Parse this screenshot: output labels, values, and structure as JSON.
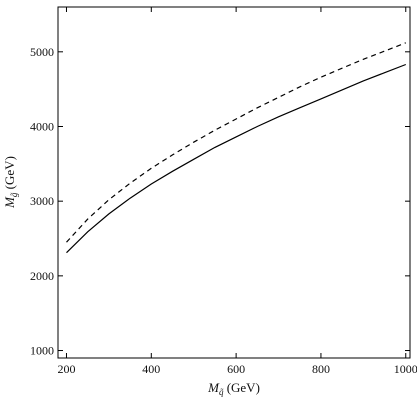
{
  "chart_data": {
    "type": "line",
    "title": "",
    "xlabel": {
      "symbol": "M",
      "subscript": "q̃",
      "unit": " (GeV)"
    },
    "ylabel": {
      "symbol": "M",
      "subscript": "g̃",
      "unit": " (GeV)"
    },
    "xlim": [
      180,
      1010
    ],
    "ylim": [
      900,
      5600
    ],
    "xticks": [
      200,
      400,
      600,
      800,
      1000
    ],
    "yticks": [
      1000,
      2000,
      3000,
      4000,
      5000
    ],
    "grid": false,
    "legend": "none",
    "series": [
      {
        "style": "solid",
        "color": "#000000",
        "x": [
          200,
          250,
          300,
          350,
          400,
          450,
          500,
          550,
          600,
          650,
          700,
          750,
          800,
          850,
          900,
          950,
          1000
        ],
        "y": [
          2310,
          2590,
          2830,
          3040,
          3230,
          3400,
          3560,
          3720,
          3860,
          4000,
          4130,
          4250,
          4370,
          4490,
          4610,
          4720,
          4830
        ]
      },
      {
        "style": "dashed",
        "color": "#000000",
        "x": [
          200,
          250,
          300,
          350,
          400,
          450,
          500,
          550,
          600,
          650,
          700,
          750,
          800,
          850,
          900,
          950,
          1000
        ],
        "y": [
          2450,
          2760,
          3020,
          3240,
          3440,
          3620,
          3790,
          3950,
          4100,
          4250,
          4390,
          4530,
          4660,
          4780,
          4900,
          5010,
          5120
        ]
      }
    ]
  }
}
